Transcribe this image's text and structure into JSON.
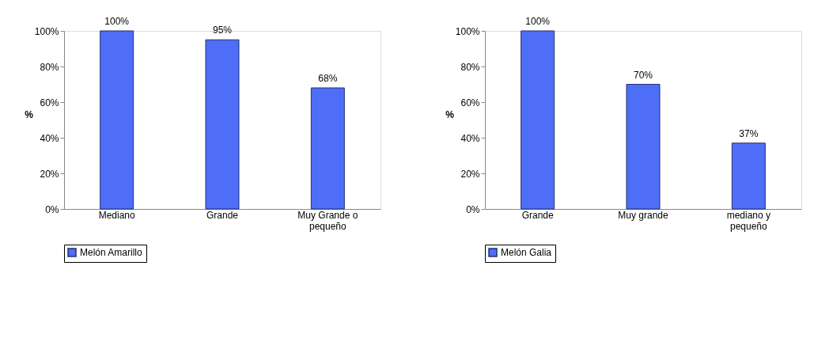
{
  "chart_data": [
    {
      "type": "bar",
      "categories": [
        "Mediano",
        "Grande",
        "Muy Grande o pequeño"
      ],
      "ylabel": "%",
      "series": [
        {
          "name": "Melón Amarillo",
          "color": "#4f6ef7",
          "values": [
            100,
            95,
            68
          ]
        }
      ],
      "value_labels": [
        "100%",
        "95%",
        "68%"
      ],
      "ylim": [
        0,
        100
      ],
      "yticks": [
        {
          "value": 0,
          "label": "0%"
        },
        {
          "value": 20,
          "label": "20%"
        },
        {
          "value": 40,
          "label": "40%"
        },
        {
          "value": 60,
          "label": "60%"
        },
        {
          "value": 80,
          "label": "80%"
        },
        {
          "value": 100,
          "label": "100%"
        }
      ],
      "grid": false,
      "legend": "bottom"
    },
    {
      "type": "bar",
      "categories": [
        "Grande",
        "Muy grande",
        "mediano y pequeño"
      ],
      "ylabel": "%",
      "series": [
        {
          "name": "Melón Galia",
          "color": "#4f6ef7",
          "values": [
            100,
            70,
            37
          ]
        }
      ],
      "value_labels": [
        "100%",
        "70%",
        "37%"
      ],
      "ylim": [
        0,
        100
      ],
      "yticks": [
        {
          "value": 0,
          "label": "0%"
        },
        {
          "value": 20,
          "label": "20%"
        },
        {
          "value": 40,
          "label": "40%"
        },
        {
          "value": 60,
          "label": "60%"
        },
        {
          "value": 80,
          "label": "80%"
        },
        {
          "value": 100,
          "label": "100%"
        }
      ],
      "grid": false,
      "legend": "bottom"
    }
  ]
}
